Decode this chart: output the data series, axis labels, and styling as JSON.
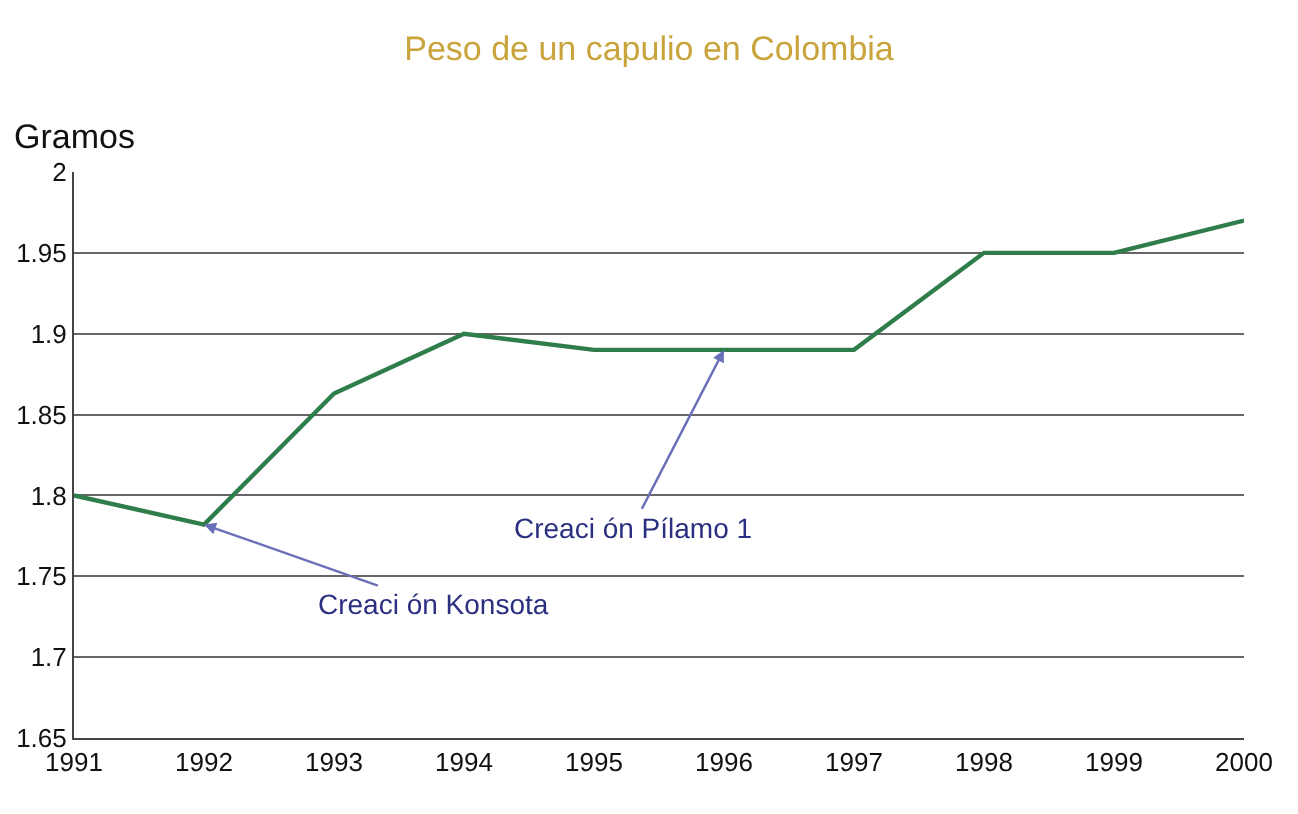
{
  "chart_data": {
    "type": "line",
    "title": "Peso de un capulio en Colombia",
    "ylabel": "Gramos",
    "x": [
      1991,
      1992,
      1993,
      1994,
      1995,
      1996,
      1997,
      1998,
      1999,
      2000
    ],
    "series": [
      {
        "color": "#2e7d4a",
        "values": [
          1.8,
          1.782,
          1.863,
          1.9,
          1.89,
          1.89,
          1.89,
          1.95,
          1.95,
          1.97
        ]
      }
    ],
    "xlim": [
      1991,
      2000
    ],
    "xticks": [
      1991,
      1992,
      1993,
      1994,
      1995,
      1996,
      1997,
      1998,
      1999,
      2000
    ],
    "ylim": [
      1.65,
      2
    ],
    "yticks": [
      1.65,
      1.7,
      1.75,
      1.8,
      1.85,
      1.9,
      1.95,
      2
    ],
    "grid": "y",
    "marker": "none",
    "line_style": "solid",
    "annotations": [
      {
        "text": "Creaci ón Pílamo 1",
        "x": 1996,
        "y": 1.89
      },
      {
        "text": "Creaci ón Konsota",
        "x": 1992,
        "y": 1.782
      }
    ]
  }
}
